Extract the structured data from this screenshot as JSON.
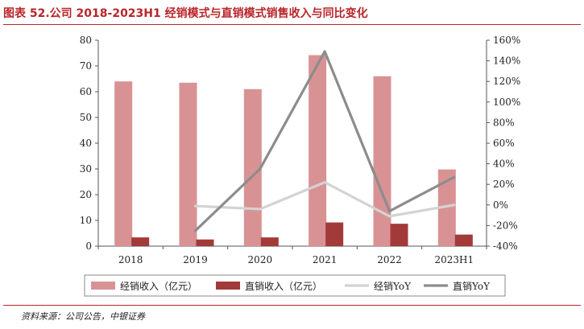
{
  "header": {
    "title": "图表 52.公司 2018-2023H1 经销模式与直销模式销售收入与同比变化"
  },
  "footer": {
    "source": "资料来源：公司公告，中银证券"
  },
  "colors": {
    "title": "#b9252a",
    "dealer_bar": "#d99294",
    "direct_bar": "#a23a39",
    "dealer_yoy": "#d3d3d3",
    "direct_yoy": "#8c8c8c"
  },
  "chart_data": {
    "type": "bar",
    "title": "图表 52.公司 2018-2023H1 经销模式与直销模式销售收入与同比变化",
    "categories": [
      "2018",
      "2019",
      "2020",
      "2021",
      "2022",
      "2023H1"
    ],
    "series": [
      {
        "name": "经销收入（亿元）",
        "kind": "bar",
        "axis": "left",
        "values": [
          64.0,
          63.5,
          61.0,
          74.2,
          66.0,
          29.8
        ]
      },
      {
        "name": "直销收入（亿元）",
        "kind": "bar",
        "axis": "left",
        "values": [
          3.4,
          2.6,
          3.4,
          9.2,
          8.7,
          4.5
        ]
      },
      {
        "name": "经销YoY",
        "kind": "line",
        "axis": "right",
        "values": [
          null,
          -1,
          -4,
          22,
          -11,
          0
        ]
      },
      {
        "name": "直销YoY",
        "kind": "line",
        "axis": "right",
        "values": [
          null,
          -25,
          35,
          149,
          -6,
          27
        ]
      }
    ],
    "y_left": {
      "range": [
        0,
        80
      ],
      "ticks": [
        0,
        10,
        20,
        30,
        40,
        50,
        60,
        70,
        80
      ]
    },
    "y_right": {
      "range": [
        -40,
        160
      ],
      "ticks": [
        -40,
        -20,
        0,
        20,
        40,
        60,
        80,
        100,
        120,
        140,
        160
      ],
      "tick_labels": [
        "-40%",
        "-20%",
        "0%",
        "20%",
        "40%",
        "60%",
        "80%",
        "100%",
        "120%",
        "140%",
        "160%"
      ]
    },
    "grid": false,
    "legend": "bottom"
  }
}
